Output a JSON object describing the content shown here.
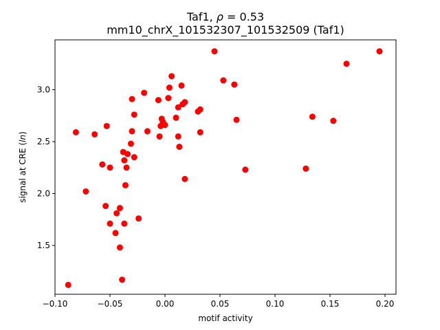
{
  "chart_data": {
    "type": "scatter",
    "title_line1_prefix": "Taf1, ",
    "title_rho_symbol": "ρ",
    "title_rho_value": " = 0.53",
    "title_line2": "mm10_chrX_101532307_101532509 (Taf1)",
    "xlabel": "motif activity",
    "ylabel_prefix": "signal at CRE (",
    "ylabel_italic": "ln",
    "ylabel_suffix": ")",
    "xlim": [
      -0.1,
      0.21
    ],
    "ylim": [
      1.03,
      3.48
    ],
    "xticks": [
      -0.1,
      -0.05,
      0.0,
      0.05,
      0.1,
      0.15,
      0.2
    ],
    "xtick_labels": [
      "−0.10",
      "−0.05",
      "0.00",
      "0.05",
      "0.10",
      "0.15",
      "0.20"
    ],
    "yticks": [
      1.5,
      2.0,
      2.5,
      3.0
    ],
    "ytick_labels": [
      "1.5",
      "2.0",
      "2.5",
      "3.0"
    ],
    "grid": false,
    "marker_color": "#ff0000",
    "points": [
      {
        "x": -0.088,
        "y": 1.12
      },
      {
        "x": -0.081,
        "y": 2.59
      },
      {
        "x": -0.072,
        "y": 2.02
      },
      {
        "x": -0.064,
        "y": 2.57
      },
      {
        "x": -0.057,
        "y": 2.28
      },
      {
        "x": -0.054,
        "y": 1.88
      },
      {
        "x": -0.053,
        "y": 2.65
      },
      {
        "x": -0.05,
        "y": 2.25
      },
      {
        "x": -0.05,
        "y": 1.71
      },
      {
        "x": -0.045,
        "y": 1.62
      },
      {
        "x": -0.044,
        "y": 1.81
      },
      {
        "x": -0.041,
        "y": 1.86
      },
      {
        "x": -0.041,
        "y": 1.48
      },
      {
        "x": -0.039,
        "y": 1.17
      },
      {
        "x": -0.038,
        "y": 2.4
      },
      {
        "x": -0.037,
        "y": 2.32
      },
      {
        "x": -0.037,
        "y": 1.71
      },
      {
        "x": -0.036,
        "y": 2.08
      },
      {
        "x": -0.035,
        "y": 2.25
      },
      {
        "x": -0.034,
        "y": 2.38
      },
      {
        "x": -0.031,
        "y": 2.48
      },
      {
        "x": -0.03,
        "y": 2.91
      },
      {
        "x": -0.03,
        "y": 2.6
      },
      {
        "x": -0.028,
        "y": 2.76
      },
      {
        "x": -0.028,
        "y": 2.35
      },
      {
        "x": -0.024,
        "y": 1.76
      },
      {
        "x": -0.019,
        "y": 2.97
      },
      {
        "x": -0.016,
        "y": 2.6
      },
      {
        "x": -0.006,
        "y": 2.9
      },
      {
        "x": -0.005,
        "y": 2.55
      },
      {
        "x": -0.004,
        "y": 2.65
      },
      {
        "x": -0.003,
        "y": 2.72
      },
      {
        "x": -0.002,
        "y": 2.69
      },
      {
        "x": 0.0,
        "y": 2.66
      },
      {
        "x": 0.003,
        "y": 2.92
      },
      {
        "x": 0.004,
        "y": 3.02
      },
      {
        "x": 0.006,
        "y": 3.13
      },
      {
        "x": 0.01,
        "y": 2.73
      },
      {
        "x": 0.012,
        "y": 2.83
      },
      {
        "x": 0.012,
        "y": 2.55
      },
      {
        "x": 0.013,
        "y": 2.45
      },
      {
        "x": 0.015,
        "y": 3.04
      },
      {
        "x": 0.016,
        "y": 2.86
      },
      {
        "x": 0.018,
        "y": 2.88
      },
      {
        "x": 0.018,
        "y": 2.14
      },
      {
        "x": 0.03,
        "y": 2.79
      },
      {
        "x": 0.032,
        "y": 2.81
      },
      {
        "x": 0.032,
        "y": 2.59
      },
      {
        "x": 0.045,
        "y": 3.37
      },
      {
        "x": 0.053,
        "y": 3.09
      },
      {
        "x": 0.063,
        "y": 3.05
      },
      {
        "x": 0.065,
        "y": 2.71
      },
      {
        "x": 0.073,
        "y": 2.23
      },
      {
        "x": 0.128,
        "y": 2.24
      },
      {
        "x": 0.134,
        "y": 2.74
      },
      {
        "x": 0.153,
        "y": 2.7
      },
      {
        "x": 0.165,
        "y": 3.25
      },
      {
        "x": 0.195,
        "y": 3.37
      }
    ]
  }
}
